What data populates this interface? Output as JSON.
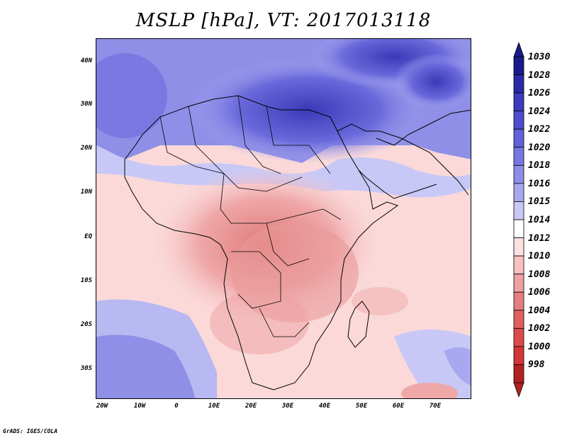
{
  "title": "MSLP [hPa], VT: 2017013118",
  "footer": "GrADS: IGES/COLA",
  "map": {
    "variable": "MSLP",
    "units": "hPa",
    "valid_time": "2017013118",
    "lat_labels": [
      "40N",
      "30N",
      "20N",
      "10N",
      "EQ",
      "10S",
      "20S",
      "30S"
    ],
    "lon_labels": [
      "20W",
      "10W",
      "0",
      "10E",
      "20E",
      "30E",
      "40E",
      "50E",
      "60E",
      "70E"
    ]
  },
  "colorbar": {
    "labels": [
      "1030",
      "1028",
      "1026",
      "1024",
      "1022",
      "1020",
      "1018",
      "1016",
      "1015",
      "1014",
      "1012",
      "1010",
      "1008",
      "1006",
      "1004",
      "1002",
      "1000",
      "998"
    ],
    "colors": [
      "#1a1a8c",
      "#2b2ba8",
      "#3c3cbf",
      "#4d4dd0",
      "#6161da",
      "#7777e2",
      "#8d8de9",
      "#a8a8f0",
      "#c8c8f6",
      "#ffffff",
      "#fde0e0",
      "#f8c0c0",
      "#eda0a0",
      "#e57f7f",
      "#e05f5f",
      "#dc4a4a",
      "#d33636",
      "#b22222"
    ]
  }
}
